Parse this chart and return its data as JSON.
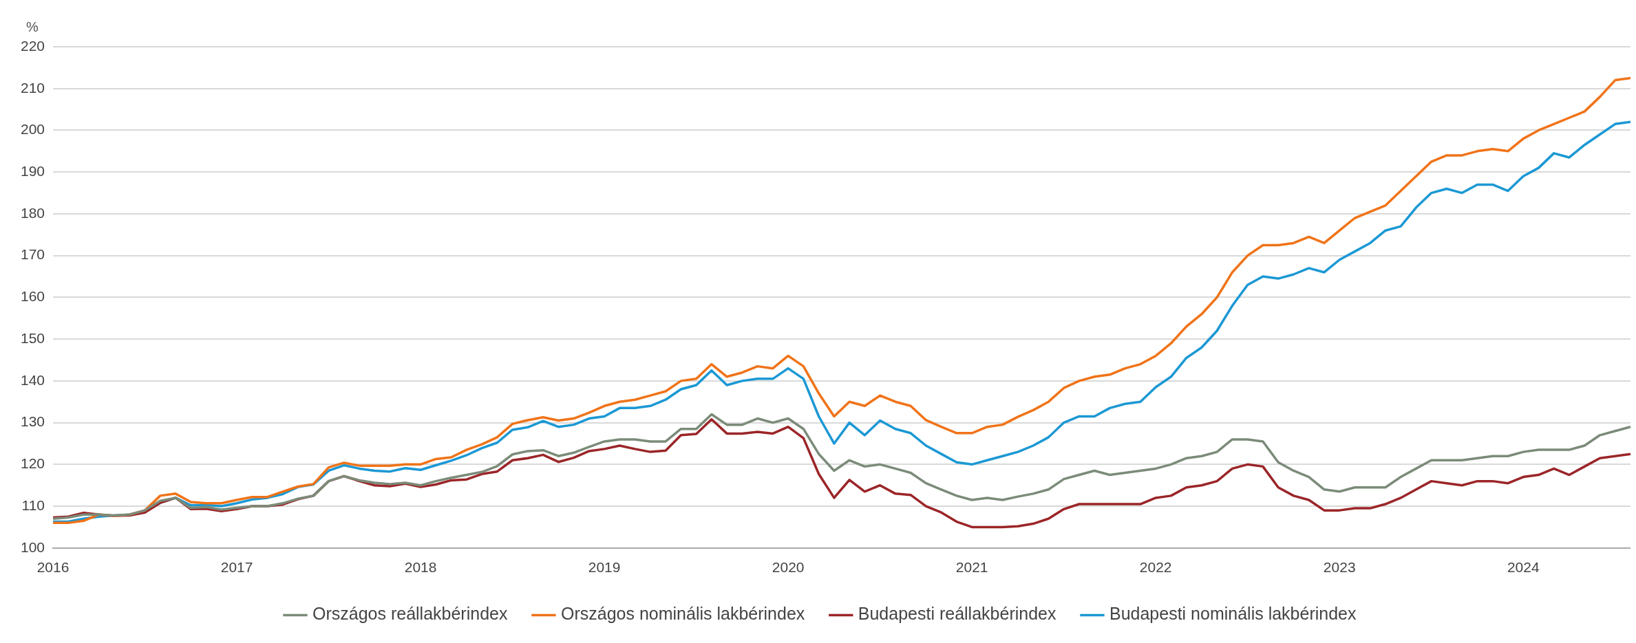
{
  "chart_data": {
    "type": "line",
    "ylabel": "%",
    "x": [
      "2016-01",
      "2016-02",
      "2016-03",
      "2016-04",
      "2016-05",
      "2016-06",
      "2016-07",
      "2016-08",
      "2016-09",
      "2016-10",
      "2016-11",
      "2016-12",
      "2017-01",
      "2017-02",
      "2017-03",
      "2017-04",
      "2017-05",
      "2017-06",
      "2017-07",
      "2017-08",
      "2017-09",
      "2017-10",
      "2017-11",
      "2017-12",
      "2018-01",
      "2018-02",
      "2018-03",
      "2018-04",
      "2018-05",
      "2018-06",
      "2018-07",
      "2018-08",
      "2018-09",
      "2018-10",
      "2018-11",
      "2018-12",
      "2019-01",
      "2019-02",
      "2019-03",
      "2019-04",
      "2019-05",
      "2019-06",
      "2019-07",
      "2019-08",
      "2019-09",
      "2019-10",
      "2019-11",
      "2019-12",
      "2020-01",
      "2020-02",
      "2020-03",
      "2020-04",
      "2020-05",
      "2020-06",
      "2020-07",
      "2020-08",
      "2020-09",
      "2020-10",
      "2020-11",
      "2020-12",
      "2021-01",
      "2021-02",
      "2021-03",
      "2021-04",
      "2021-05",
      "2021-06",
      "2021-07",
      "2021-08",
      "2021-09",
      "2021-10",
      "2021-11",
      "2021-12",
      "2022-01",
      "2022-02",
      "2022-03",
      "2022-04",
      "2022-05",
      "2022-06",
      "2022-07",
      "2022-08",
      "2022-09",
      "2022-10",
      "2022-11",
      "2022-12",
      "2023-01",
      "2023-02",
      "2023-03",
      "2023-04",
      "2023-05",
      "2023-06",
      "2023-07",
      "2023-08",
      "2023-09",
      "2023-10",
      "2023-11",
      "2023-12",
      "2024-01",
      "2024-02",
      "2024-03",
      "2024-04",
      "2024-05",
      "2024-06",
      "2024-07",
      "2024-08"
    ],
    "series": [
      {
        "name": "Országos reállakbérindex",
        "color": "#7b8b79",
        "values": [
          107,
          107.3,
          108,
          108,
          107.8,
          108,
          109,
          111.3,
          112,
          109.6,
          109.8,
          109.2,
          109.6,
          110,
          110,
          110.7,
          111.8,
          112.5,
          116,
          117.2,
          116.2,
          115.6,
          115.3,
          115.6,
          115,
          116,
          116.8,
          117.5,
          118.2,
          119.6,
          122.4,
          123.2,
          123.4,
          122,
          122.8,
          124.2,
          125.5,
          126,
          126,
          125.5,
          125.5,
          128.5,
          128.5,
          132,
          129.5,
          129.5,
          131,
          130,
          131,
          128.5,
          122.5,
          118.5,
          121,
          119.5,
          120,
          119,
          118,
          115.5,
          114,
          112.5,
          111.5,
          112,
          111.5,
          112.3,
          113,
          114,
          116.5,
          117.5,
          118.5,
          117.5,
          118,
          118.5,
          119,
          120,
          121.5,
          122,
          123,
          126,
          126,
          125.5,
          120.5,
          118.5,
          117,
          114,
          113.5,
          114.5,
          114.5,
          114.5,
          117,
          119,
          121,
          121,
          121,
          121.5,
          122,
          122,
          123,
          123.5,
          123.5,
          123.5,
          124.5,
          127,
          128,
          129
        ]
      },
      {
        "name": "Országos nominális lakbérindex",
        "color": "#f07318",
        "values": [
          106,
          106,
          106.5,
          108,
          107.7,
          108,
          109,
          112.5,
          113,
          111,
          110.7,
          110.7,
          111.5,
          112.2,
          112.2,
          113.5,
          114.7,
          115.3,
          119.3,
          120.4,
          119.7,
          119.7,
          119.7,
          120,
          120,
          121.3,
          121.7,
          123.5,
          124.8,
          126.5,
          129.7,
          130.6,
          131.3,
          130.5,
          131,
          132.4,
          134,
          135,
          135.5,
          136.5,
          137.5,
          140,
          140.5,
          144,
          141,
          142,
          143.5,
          143,
          146,
          143.5,
          137,
          131.5,
          135,
          134,
          136.5,
          135,
          134,
          130.6,
          129,
          127.5,
          127.5,
          129,
          129.5,
          131.4,
          133,
          135,
          138.3,
          140,
          141,
          141.5,
          143,
          144,
          146,
          149,
          153,
          156,
          160,
          166,
          170,
          172.5,
          172.5,
          173,
          174.5,
          173,
          176,
          179,
          180.5,
          182,
          185.5,
          189,
          192.5,
          194,
          194,
          195,
          195.5,
          195,
          198,
          200,
          201.5,
          203,
          204.5,
          208,
          212,
          212.5
        ]
      },
      {
        "name": "Budapesti reállakbérindex",
        "color": "#9b2528",
        "values": [
          107.3,
          107.5,
          108.4,
          108,
          107.7,
          107.8,
          108.5,
          110.8,
          112,
          109.3,
          109.4,
          108.8,
          109.3,
          110,
          110,
          110.4,
          111.7,
          112.5,
          116,
          117.2,
          116,
          115,
          114.8,
          115.4,
          114.6,
          115.2,
          116.2,
          116.4,
          117.7,
          118.3,
          121,
          121.5,
          122.3,
          120.6,
          121.6,
          123.2,
          123.7,
          124.5,
          123.7,
          123,
          123.3,
          127,
          127.3,
          130.8,
          127.4,
          127.4,
          127.8,
          127.4,
          129,
          126.3,
          117.7,
          112,
          116.3,
          113.5,
          115,
          113,
          112.7,
          110,
          108.5,
          106.3,
          105,
          105,
          105,
          105.2,
          105.8,
          107,
          109.3,
          110.5,
          110.5,
          110.5,
          110.5,
          110.5,
          112,
          112.5,
          114.5,
          115,
          116,
          119,
          120,
          119.5,
          114.5,
          112.5,
          111.5,
          109,
          109,
          109.5,
          109.5,
          110.5,
          112,
          114,
          116,
          115.5,
          115,
          116,
          116,
          115.5,
          117,
          117.5,
          119,
          117.5,
          119.5,
          121.5,
          122,
          122.5
        ]
      },
      {
        "name": "Budapesti nominális lakbérindex",
        "color": "#1b98d4",
        "values": [
          106.3,
          106.3,
          107,
          107.5,
          107.8,
          108,
          108.7,
          110.8,
          112,
          110.2,
          110.3,
          110,
          110.7,
          111.6,
          112,
          112.9,
          114.6,
          115.2,
          118.5,
          119.8,
          119,
          118.5,
          118.3,
          119.1,
          118.7,
          119.8,
          120.9,
          122.2,
          123.9,
          125.2,
          128.3,
          128.9,
          130.4,
          129,
          129.5,
          131,
          131.5,
          133.5,
          133.5,
          134,
          135.5,
          138,
          139,
          142.5,
          139,
          140,
          140.5,
          140.5,
          143,
          140.5,
          131.5,
          125,
          130,
          127,
          130.5,
          128.5,
          127.5,
          124.5,
          122.5,
          120.5,
          120,
          121,
          122,
          123,
          124.5,
          126.5,
          130,
          131.5,
          131.5,
          133.5,
          134.5,
          135,
          138.5,
          141,
          145.5,
          148,
          152,
          158,
          163,
          165,
          164.5,
          165.5,
          167,
          166,
          169,
          171,
          173,
          176,
          177,
          181.5,
          185,
          186,
          185,
          187,
          187,
          185.5,
          189,
          191,
          194.5,
          193.5,
          196.5,
          199,
          201.5,
          202
        ]
      }
    ],
    "xlim": [
      "2016-01",
      "2024-08"
    ],
    "xticks": [
      "2016",
      "2017",
      "2018",
      "2019",
      "2020",
      "2021",
      "2022",
      "2023",
      "2024"
    ],
    "ylim": [
      100,
      220
    ],
    "yticks": [
      100,
      110,
      120,
      130,
      140,
      150,
      160,
      170,
      180,
      190,
      200,
      210,
      220
    ],
    "grid": "y",
    "legend": "bottom",
    "marker": "none",
    "line_style": "solid"
  }
}
